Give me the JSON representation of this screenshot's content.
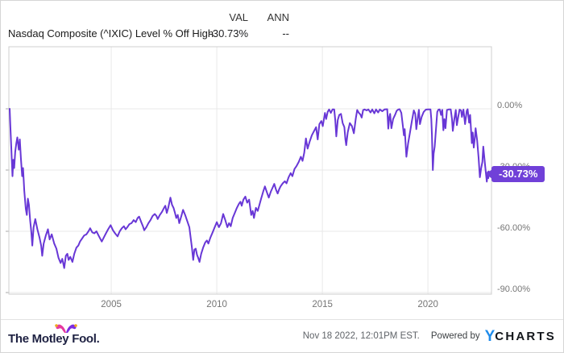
{
  "header": {
    "val_label": "VAL",
    "ann_label": "ANN",
    "series_name": "Nasdaq Composite (^IXIC) Level % Off High",
    "val_value": "-30.73%",
    "ann_value": "--"
  },
  "badge": {
    "value": "-30.73%"
  },
  "footer": {
    "brand": "The Motley Fool.",
    "timestamp": "Nov 18 2022, 12:01PM EST.",
    "powered_by": "Powered by",
    "logo_y": "Y",
    "logo_charts": "CHARTS"
  },
  "colors": {
    "line": "#6837d6",
    "badge": "#7040d8",
    "grid": "#e8e8e8",
    "plot_border": "#cfcfcf",
    "tick": "#aaaaaa",
    "axis_text": "#757575",
    "ycharts_blue": "#1f8ceb",
    "fool_navy": "#1e2142",
    "hat_pink": "#e5399f",
    "hat_purple": "#7d2ce0",
    "hat_gold": "#f0a81e"
  },
  "chart_data": {
    "type": "line",
    "title": "Nasdaq Composite (^IXIC) Level % Off High",
    "series": [
      {
        "name": "Nasdaq Composite (^IXIC) Level % Off High",
        "current_value": -30.73
      }
    ],
    "unit": "%",
    "grid": true,
    "legend_position": "none",
    "xlim": [
      2000.15,
      2023.01
    ],
    "ylim": [
      -90.79,
      30.39
    ],
    "x_ticks": [
      2005,
      2010,
      2015,
      2020
    ],
    "x_tick_labels": [
      "2005",
      "2010",
      "2015",
      "2020"
    ],
    "y_ticks": [
      0,
      -30,
      -60,
      -90
    ],
    "y_tick_labels": [
      "0.00%",
      "-30.00%",
      "-60.00%",
      "-90.00%"
    ],
    "points": [
      [
        2000.19,
        0
      ],
      [
        2000.22,
        -8
      ],
      [
        2000.26,
        -18
      ],
      [
        2000.32,
        -33
      ],
      [
        2000.36,
        -25
      ],
      [
        2000.4,
        -29
      ],
      [
        2000.45,
        -21
      ],
      [
        2000.5,
        -17
      ],
      [
        2000.55,
        -14
      ],
      [
        2000.62,
        -20
      ],
      [
        2000.67,
        -15
      ],
      [
        2000.72,
        -24
      ],
      [
        2000.78,
        -33
      ],
      [
        2000.82,
        -29
      ],
      [
        2000.88,
        -40
      ],
      [
        2000.95,
        -49
      ],
      [
        2001.0,
        -52
      ],
      [
        2001.05,
        -44
      ],
      [
        2001.1,
        -47
      ],
      [
        2001.16,
        -55
      ],
      [
        2001.21,
        -60
      ],
      [
        2001.26,
        -67
      ],
      [
        2001.32,
        -58
      ],
      [
        2001.4,
        -54
      ],
      [
        2001.5,
        -59
      ],
      [
        2001.6,
        -63
      ],
      [
        2001.68,
        -67
      ],
      [
        2001.73,
        -72
      ],
      [
        2001.8,
        -66
      ],
      [
        2001.9,
        -62
      ],
      [
        2002.0,
        -59
      ],
      [
        2002.08,
        -64
      ],
      [
        2002.18,
        -61.5
      ],
      [
        2002.3,
        -66
      ],
      [
        2002.4,
        -68.5
      ],
      [
        2002.5,
        -73
      ],
      [
        2002.6,
        -75.5
      ],
      [
        2002.68,
        -73.5
      ],
      [
        2002.77,
        -78
      ],
      [
        2002.85,
        -72
      ],
      [
        2002.92,
        -71
      ],
      [
        2002.98,
        -74
      ],
      [
        2003.06,
        -72.5
      ],
      [
        2003.16,
        -75
      ],
      [
        2003.25,
        -71
      ],
      [
        2003.35,
        -68
      ],
      [
        2003.44,
        -67
      ],
      [
        2003.52,
        -65
      ],
      [
        2003.62,
        -63.5
      ],
      [
        2003.72,
        -62
      ],
      [
        2003.82,
        -61.5
      ],
      [
        2003.92,
        -60
      ],
      [
        2004.0,
        -58.5
      ],
      [
        2004.1,
        -60.5
      ],
      [
        2004.2,
        -61
      ],
      [
        2004.3,
        -60
      ],
      [
        2004.42,
        -62.5
      ],
      [
        2004.55,
        -65
      ],
      [
        2004.65,
        -63
      ],
      [
        2004.75,
        -61
      ],
      [
        2004.85,
        -59
      ],
      [
        2004.97,
        -57
      ],
      [
        2005.08,
        -59.5
      ],
      [
        2005.18,
        -61
      ],
      [
        2005.3,
        -62.5
      ],
      [
        2005.4,
        -60
      ],
      [
        2005.5,
        -58.5
      ],
      [
        2005.6,
        -57.5
      ],
      [
        2005.68,
        -59
      ],
      [
        2005.76,
        -58
      ],
      [
        2005.86,
        -56.5
      ],
      [
        2005.96,
        -56
      ],
      [
        2006.06,
        -54.5
      ],
      [
        2006.16,
        -55.5
      ],
      [
        2006.25,
        -53.5
      ],
      [
        2006.32,
        -52.8
      ],
      [
        2006.42,
        -55.5
      ],
      [
        2006.5,
        -57.5
      ],
      [
        2006.56,
        -59.5
      ],
      [
        2006.66,
        -58
      ],
      [
        2006.76,
        -56
      ],
      [
        2006.86,
        -54.5
      ],
      [
        2006.96,
        -52.5
      ],
      [
        2007.06,
        -51.5
      ],
      [
        2007.14,
        -52.5
      ],
      [
        2007.2,
        -54
      ],
      [
        2007.3,
        -52
      ],
      [
        2007.4,
        -50.5
      ],
      [
        2007.5,
        -48.5
      ],
      [
        2007.56,
        -47.5
      ],
      [
        2007.63,
        -51
      ],
      [
        2007.7,
        -48.5
      ],
      [
        2007.8,
        -43.5
      ],
      [
        2007.88,
        -47
      ],
      [
        2007.95,
        -48.5
      ],
      [
        2008.02,
        -51
      ],
      [
        2008.08,
        -53.5
      ],
      [
        2008.15,
        -52
      ],
      [
        2008.22,
        -56
      ],
      [
        2008.32,
        -52.5
      ],
      [
        2008.4,
        -49.5
      ],
      [
        2008.5,
        -52
      ],
      [
        2008.6,
        -55
      ],
      [
        2008.7,
        -58
      ],
      [
        2008.76,
        -63
      ],
      [
        2008.82,
        -68
      ],
      [
        2008.88,
        -74
      ],
      [
        2008.94,
        -69
      ],
      [
        2009.0,
        -68.5
      ],
      [
        2009.06,
        -71.5
      ],
      [
        2009.12,
        -73
      ],
      [
        2009.18,
        -75
      ],
      [
        2009.26,
        -71
      ],
      [
        2009.35,
        -68
      ],
      [
        2009.45,
        -65.5
      ],
      [
        2009.53,
        -64.5
      ],
      [
        2009.6,
        -66
      ],
      [
        2009.7,
        -63
      ],
      [
        2009.8,
        -60.5
      ],
      [
        2009.9,
        -58
      ],
      [
        2010.0,
        -55.5
      ],
      [
        2010.1,
        -58
      ],
      [
        2010.2,
        -56
      ],
      [
        2010.3,
        -51.5
      ],
      [
        2010.4,
        -54.5
      ],
      [
        2010.5,
        -58
      ],
      [
        2010.58,
        -56
      ],
      [
        2010.66,
        -57.5
      ],
      [
        2010.75,
        -53.5
      ],
      [
        2010.85,
        -51
      ],
      [
        2010.95,
        -48.5
      ],
      [
        2011.05,
        -46.5
      ],
      [
        2011.12,
        -45.5
      ],
      [
        2011.18,
        -47.5
      ],
      [
        2011.26,
        -44.5
      ],
      [
        2011.35,
        -43
      ],
      [
        2011.44,
        -46
      ],
      [
        2011.53,
        -44.5
      ],
      [
        2011.63,
        -52
      ],
      [
        2011.7,
        -50
      ],
      [
        2011.76,
        -53.5
      ],
      [
        2011.85,
        -48.5
      ],
      [
        2011.94,
        -50
      ],
      [
        2012.02,
        -47
      ],
      [
        2012.1,
        -44
      ],
      [
        2012.2,
        -40.5
      ],
      [
        2012.28,
        -38
      ],
      [
        2012.36,
        -40.5
      ],
      [
        2012.46,
        -43.5
      ],
      [
        2012.56,
        -40.5
      ],
      [
        2012.65,
        -38.5
      ],
      [
        2012.72,
        -36.8
      ],
      [
        2012.8,
        -39.5
      ],
      [
        2012.88,
        -41.5
      ],
      [
        2012.95,
        -39.5
      ],
      [
        2013.02,
        -38
      ],
      [
        2013.12,
        -36.5
      ],
      [
        2013.22,
        -35.5
      ],
      [
        2013.3,
        -36.5
      ],
      [
        2013.4,
        -33.5
      ],
      [
        2013.5,
        -31.5
      ],
      [
        2013.58,
        -33
      ],
      [
        2013.68,
        -29.5
      ],
      [
        2013.78,
        -28
      ],
      [
        2013.88,
        -26
      ],
      [
        2013.98,
        -23.5
      ],
      [
        2014.06,
        -25.5
      ],
      [
        2014.14,
        -21.5
      ],
      [
        2014.22,
        -14.5
      ],
      [
        2014.3,
        -19.5
      ],
      [
        2014.4,
        -16
      ],
      [
        2014.5,
        -13
      ],
      [
        2014.6,
        -11
      ],
      [
        2014.7,
        -9
      ],
      [
        2014.78,
        -15
      ],
      [
        2014.86,
        -7.5
      ],
      [
        2014.95,
        -6
      ],
      [
        2015.02,
        -8.5
      ],
      [
        2015.12,
        -2
      ],
      [
        2015.18,
        -5
      ],
      [
        2015.25,
        -1.5
      ],
      [
        2015.32,
        -0.3
      ],
      [
        2015.4,
        -2
      ],
      [
        2015.48,
        -0.3
      ],
      [
        2015.56,
        -0.3
      ],
      [
        2015.61,
        -5.5
      ],
      [
        2015.66,
        -13.5
      ],
      [
        2015.73,
        -5.5
      ],
      [
        2015.8,
        -3
      ],
      [
        2015.88,
        -2.5
      ],
      [
        2015.96,
        -7
      ],
      [
        2016.04,
        -9
      ],
      [
        2016.09,
        -15
      ],
      [
        2016.13,
        -17.8
      ],
      [
        2016.2,
        -11.5
      ],
      [
        2016.3,
        -7
      ],
      [
        2016.4,
        -8.5
      ],
      [
        2016.49,
        -12
      ],
      [
        2016.58,
        -5
      ],
      [
        2016.65,
        -0.6
      ],
      [
        2016.73,
        -2
      ],
      [
        2016.8,
        -2.8
      ],
      [
        2016.86,
        -4.3
      ],
      [
        2016.93,
        -0.6
      ],
      [
        2017.0,
        -0.3
      ],
      [
        2017.1,
        -0.8
      ],
      [
        2017.18,
        -0.3
      ],
      [
        2017.28,
        -1.8
      ],
      [
        2017.36,
        -0.3
      ],
      [
        2017.46,
        -2.2
      ],
      [
        2017.54,
        -0.3
      ],
      [
        2017.64,
        -1.8
      ],
      [
        2017.72,
        -0.3
      ],
      [
        2017.84,
        -1.2
      ],
      [
        2017.94,
        -0.3
      ],
      [
        2018.07,
        -0.2
      ],
      [
        2018.12,
        -9.7
      ],
      [
        2018.17,
        -4
      ],
      [
        2018.21,
        -2.5
      ],
      [
        2018.27,
        -9.5
      ],
      [
        2018.35,
        -5
      ],
      [
        2018.44,
        -3
      ],
      [
        2018.52,
        -1
      ],
      [
        2018.6,
        -0.3
      ],
      [
        2018.66,
        -0.2
      ],
      [
        2018.74,
        -2
      ],
      [
        2018.82,
        -9
      ],
      [
        2018.86,
        -13
      ],
      [
        2018.9,
        -10
      ],
      [
        2018.98,
        -23.5
      ],
      [
        2019.06,
        -17
      ],
      [
        2019.15,
        -11.5
      ],
      [
        2019.24,
        -6
      ],
      [
        2019.33,
        -0.8
      ],
      [
        2019.4,
        -2.5
      ],
      [
        2019.45,
        -10
      ],
      [
        2019.51,
        -5
      ],
      [
        2019.57,
        -0.5
      ],
      [
        2019.62,
        -7.5
      ],
      [
        2019.7,
        -4
      ],
      [
        2019.8,
        -1.5
      ],
      [
        2019.9,
        -0.4
      ],
      [
        2020.0,
        -0.3
      ],
      [
        2020.12,
        -0.3
      ],
      [
        2020.16,
        -5
      ],
      [
        2020.19,
        -13
      ],
      [
        2020.23,
        -30
      ],
      [
        2020.27,
        -22
      ],
      [
        2020.32,
        -18.5
      ],
      [
        2020.38,
        -10
      ],
      [
        2020.44,
        -1.5
      ],
      [
        2020.5,
        -0.4
      ],
      [
        2020.56,
        -0.3
      ],
      [
        2020.62,
        -3
      ],
      [
        2020.68,
        -0.5
      ],
      [
        2020.73,
        -10.5
      ],
      [
        2020.78,
        -5
      ],
      [
        2020.83,
        -9.5
      ],
      [
        2020.9,
        -0.6
      ],
      [
        2020.98,
        -0.3
      ],
      [
        2021.08,
        -0.3
      ],
      [
        2021.14,
        -5
      ],
      [
        2021.18,
        -10.8
      ],
      [
        2021.25,
        -5
      ],
      [
        2021.32,
        -0.6
      ],
      [
        2021.37,
        -8
      ],
      [
        2021.44,
        -3.5
      ],
      [
        2021.5,
        -0.4
      ],
      [
        2021.57,
        -0.8
      ],
      [
        2021.61,
        -4
      ],
      [
        2021.68,
        -0.4
      ],
      [
        2021.76,
        -7.5
      ],
      [
        2021.84,
        -1
      ],
      [
        2021.88,
        -0.2
      ],
      [
        2021.95,
        -6.8
      ],
      [
        2022.0,
        -3
      ],
      [
        2022.08,
        -16.8
      ],
      [
        2022.12,
        -11.6
      ],
      [
        2022.17,
        -19
      ],
      [
        2022.22,
        -14.5
      ],
      [
        2022.26,
        -9.5
      ],
      [
        2022.33,
        -15.5
      ],
      [
        2022.4,
        -24
      ],
      [
        2022.46,
        -33.5
      ],
      [
        2022.52,
        -29
      ],
      [
        2022.58,
        -26
      ],
      [
        2022.62,
        -18.5
      ],
      [
        2022.7,
        -27
      ],
      [
        2022.75,
        -32
      ],
      [
        2022.79,
        -35.7
      ],
      [
        2022.83,
        -31
      ],
      [
        2022.86,
        -34
      ],
      [
        2022.88,
        -30.73
      ]
    ]
  }
}
